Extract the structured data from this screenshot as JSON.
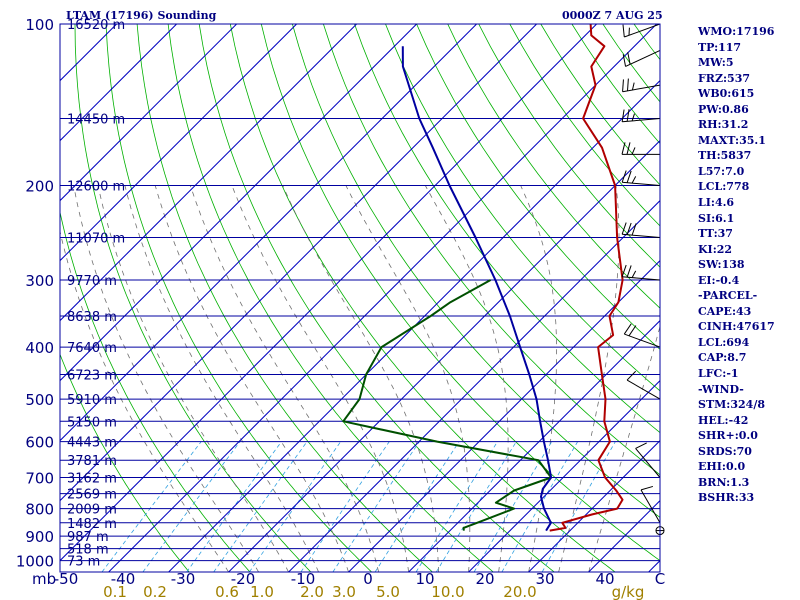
{
  "header": {
    "station_title": "LTAM (17196) Sounding",
    "time_title": "0000Z  7 AUG 25"
  },
  "stats": [
    "WMO:17196",
    "TP:117",
    "MW:5",
    "FRZ:537",
    "WB0:615",
    "PW:0.86",
    "RH:31.2",
    "MAXT:35.1",
    "TH:5837",
    "L57:7.0",
    "LCL:778",
    "LI:4.6",
    "SI:6.1",
    "TT:37",
    "KI:22",
    "SW:138",
    "EI:-0.4",
    "-PARCEL-",
    "CAPE:43",
    "CINH:47617",
    "LCL:694",
    "CAP:8.7",
    "LFC:-1",
    "-WIND-",
    "STM:324/8",
    "HEL:-42",
    "SHR+:0.0",
    "SRDS:70",
    "EHI:0.0",
    "BRN:1.3",
    "BSHR:33"
  ],
  "colors": {
    "isobar": "#0000a0",
    "isotherm": "#0000c0",
    "dry_adiabat": "#00b000",
    "moist_adiabat": "#707070",
    "mixing_ratio": "#30a0e0",
    "temperature": "#b00000",
    "dewpoint": "#005000",
    "parcel": "#0000a0",
    "label": "#000080",
    "mixing_label": "#a08000"
  },
  "chart_data": {
    "type": "line",
    "subtype": "skew-t log-p",
    "x_axis_unit_label": "mb",
    "x_ticks": [
      -50,
      -40,
      -30,
      -20,
      -10,
      0,
      10,
      20,
      30,
      40
    ],
    "x_tick_labels": [
      "-50",
      "-40",
      "-30",
      "-20",
      "-10",
      "0",
      "10",
      "20",
      "30",
      "40",
      "C"
    ],
    "xlim": [
      -50,
      50
    ],
    "pressure_ticks": [
      100,
      200,
      300,
      400,
      500,
      600,
      700,
      800,
      900,
      1000
    ],
    "ylim": [
      1000,
      100
    ],
    "y_scale": "log",
    "heights": [
      {
        "p": 100,
        "label": "16520 m"
      },
      {
        "p": 150,
        "label": "14450 m"
      },
      {
        "p": 200,
        "label": "12600 m"
      },
      {
        "p": 250,
        "label": "11070 m"
      },
      {
        "p": 300,
        "label": "9770 m"
      },
      {
        "p": 350,
        "label": "8638 m"
      },
      {
        "p": 400,
        "label": "7640 m"
      },
      {
        "p": 450,
        "label": "6723 m"
      },
      {
        "p": 500,
        "label": "5910 m"
      },
      {
        "p": 550,
        "label": "5150 m"
      },
      {
        "p": 600,
        "label": "4443 m"
      },
      {
        "p": 650,
        "label": "3781 m"
      },
      {
        "p": 700,
        "label": "3162 m"
      },
      {
        "p": 750,
        "label": "2569 m"
      },
      {
        "p": 800,
        "label": "2009 m"
      },
      {
        "p": 850,
        "label": "1482 m"
      },
      {
        "p": 900,
        "label": "987 m"
      },
      {
        "p": 950,
        "label": "518 m"
      },
      {
        "p": 1000,
        "label": "73 m"
      }
    ],
    "mixing_ratio_labels": [
      "0.1",
      "0.2",
      "0.6",
      "1.0",
      "2.0",
      "3.0",
      "5.0",
      "10.0",
      "20.0",
      "g/kg"
    ],
    "series": [
      {
        "role": "temperature",
        "points": [
          [
            879,
            26.6
          ],
          [
            869,
            28.8
          ],
          [
            850,
            27.4
          ],
          [
            820,
            31.0
          ],
          [
            800,
            34.2
          ],
          [
            770,
            33.6
          ],
          [
            740,
            31.0
          ],
          [
            700,
            27.0
          ],
          [
            650,
            23.0
          ],
          [
            600,
            21.8
          ],
          [
            550,
            17.5
          ],
          [
            500,
            14.0
          ],
          [
            450,
            9.3
          ],
          [
            400,
            4.1
          ],
          [
            380,
            4.6
          ],
          [
            350,
            0.8
          ],
          [
            330,
            0.0
          ],
          [
            300,
            -3.0
          ],
          [
            250,
            -11.0
          ],
          [
            200,
            -20.0
          ],
          [
            170,
            -28.5
          ],
          [
            150,
            -36.5
          ],
          [
            130,
            -40.0
          ],
          [
            120,
            -43.8
          ],
          [
            110,
            -45.0
          ],
          [
            105,
            -49.0
          ],
          [
            100,
            -51.0
          ]
        ]
      },
      {
        "role": "dewpoint",
        "points": [
          [
            879,
            12.3
          ],
          [
            869,
            11.8
          ],
          [
            850,
            13.2
          ],
          [
            800,
            17.0
          ],
          [
            780,
            13.0
          ],
          [
            740,
            14.0
          ],
          [
            700,
            18.0
          ],
          [
            650,
            13.0
          ],
          [
            600,
            -7.0
          ],
          [
            550,
            -26.0
          ],
          [
            500,
            -27.0
          ],
          [
            450,
            -30.0
          ],
          [
            400,
            -32.0
          ],
          [
            350,
            -29.0
          ],
          [
            330,
            -28.0
          ],
          [
            300,
            -25.0
          ]
        ]
      },
      {
        "role": "parcel",
        "points": [
          [
            879,
            26.0
          ],
          [
            850,
            25.5
          ],
          [
            800,
            22.0
          ],
          [
            760,
            19.5
          ],
          [
            735,
            18.5
          ],
          [
            700,
            18.0
          ],
          [
            650,
            14.6
          ],
          [
            600,
            10.8
          ],
          [
            550,
            6.8
          ],
          [
            500,
            2.5
          ],
          [
            450,
            -2.8
          ],
          [
            400,
            -8.9
          ],
          [
            350,
            -15.8
          ],
          [
            300,
            -24.2
          ],
          [
            250,
            -34.6
          ],
          [
            200,
            -47.6
          ],
          [
            170,
            -56.7
          ],
          [
            150,
            -63.8
          ],
          [
            120,
            -75.2
          ],
          [
            110,
            -78.6
          ]
        ]
      }
    ],
    "winds": [
      {
        "p": 100,
        "dir": 250,
        "spd": 15
      },
      {
        "p": 112,
        "dir": 245,
        "spd": 20
      },
      {
        "p": 130,
        "dir": 260,
        "spd": 25
      },
      {
        "p": 150,
        "dir": 265,
        "spd": 25
      },
      {
        "p": 175,
        "dir": 270,
        "spd": 25
      },
      {
        "p": 200,
        "dir": 275,
        "spd": 25
      },
      {
        "p": 250,
        "dir": 275,
        "spd": 30
      },
      {
        "p": 300,
        "dir": 275,
        "spd": 25
      },
      {
        "p": 400,
        "dir": 290,
        "spd": 20
      },
      {
        "p": 500,
        "dir": 300,
        "spd": 10
      },
      {
        "p": 700,
        "dir": 320,
        "spd": 10
      },
      {
        "p": 850,
        "dir": 330,
        "spd": 10
      },
      {
        "p": 879,
        "dir": 0,
        "spd": 0
      }
    ]
  }
}
